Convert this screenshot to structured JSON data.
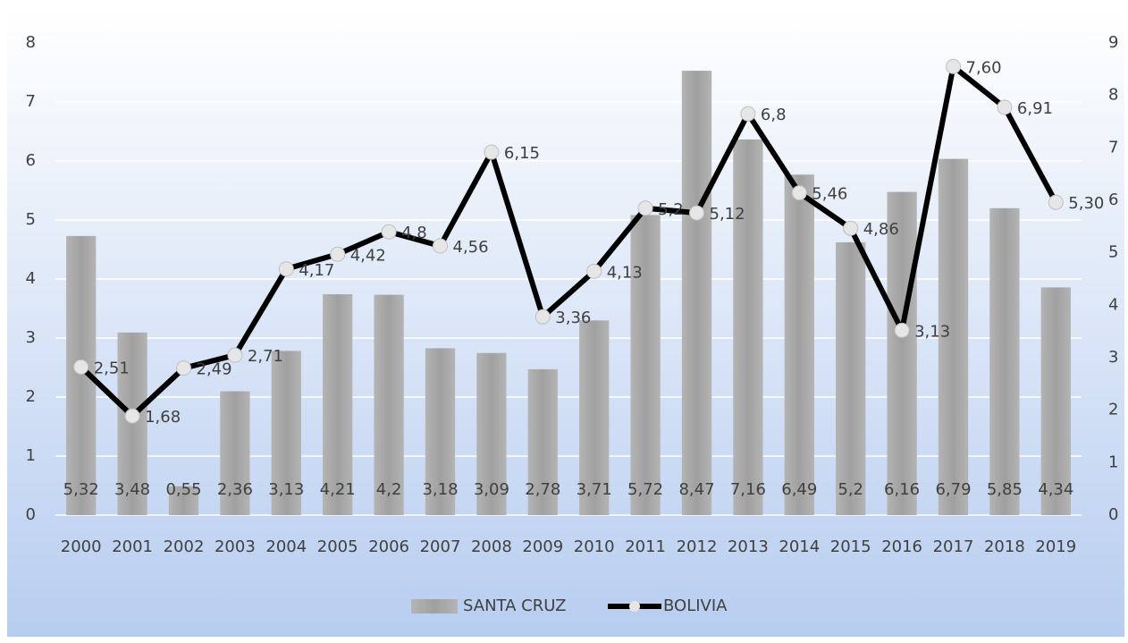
{
  "chart_data": {
    "type": "bar",
    "categories": [
      "2000",
      "2001",
      "2002",
      "2003",
      "2004",
      "2005",
      "2006",
      "2007",
      "2008",
      "2009",
      "2010",
      "2011",
      "2012",
      "2013",
      "2014",
      "2015",
      "2016",
      "2017",
      "2018",
      "2019"
    ],
    "series": [
      {
        "name": "SANTA CRUZ",
        "type": "bar",
        "axis": "y2",
        "color": "#a6a6a6",
        "values": [
          5.32,
          3.48,
          0.55,
          2.36,
          3.13,
          4.21,
          4.2,
          3.18,
          3.09,
          2.78,
          3.71,
          5.72,
          8.47,
          7.16,
          6.49,
          5.2,
          6.16,
          6.79,
          5.85,
          4.34
        ],
        "value_labels": [
          "5,32",
          "3,48",
          "0,55",
          "2,36",
          "3,13",
          "4,21",
          "4,2",
          "3,18",
          "3,09",
          "2,78",
          "3,71",
          "5,72",
          "8,47",
          "7,16",
          "6,49",
          "5,2",
          "6,16",
          "6,79",
          "5,85",
          "4,34"
        ]
      },
      {
        "name": "BOLIVIA",
        "type": "line",
        "color": "#000000",
        "values": [
          2.51,
          1.68,
          2.49,
          2.71,
          4.17,
          4.42,
          4.8,
          4.56,
          6.15,
          3.36,
          4.13,
          5.2,
          5.12,
          6.8,
          5.46,
          4.86,
          3.13,
          7.6,
          6.91,
          5.3
        ],
        "value_labels": [
          "2,51",
          "1,68",
          "2,49",
          "2,71",
          "4,17",
          "4,42",
          "4,8",
          "4,56",
          "6,15",
          "3,36",
          "4,13",
          "5,2",
          "5,12",
          "6,8",
          "5,46",
          "4,86",
          "3,13",
          "7,60",
          "6,91",
          "5,30"
        ]
      }
    ],
    "ylim": [
      0,
      8
    ],
    "yticks": [
      0,
      1,
      2,
      3,
      4,
      5,
      6,
      7,
      8
    ],
    "y2lim": [
      0,
      9
    ],
    "y2ticks": [
      0,
      1,
      2,
      3,
      4,
      5,
      6,
      7,
      8,
      9
    ],
    "grid": true,
    "legend": "bottom"
  }
}
